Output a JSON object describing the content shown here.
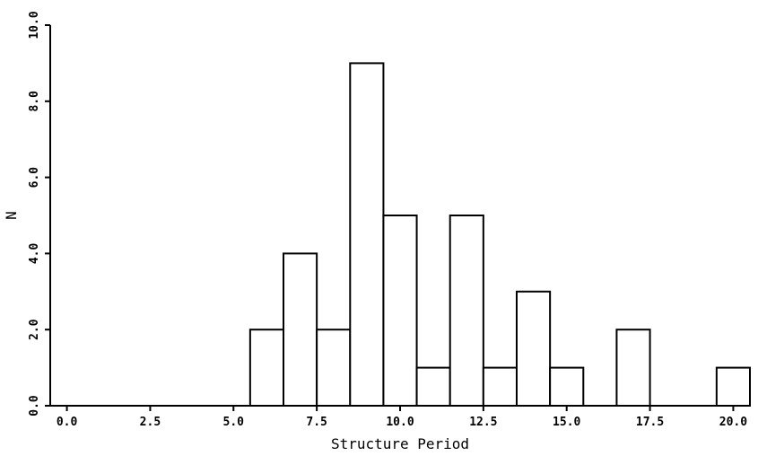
{
  "chart_data": {
    "type": "bar",
    "xlabel": "Structure Period",
    "ylabel": "N",
    "xlim": [
      -0.5,
      20.5
    ],
    "ylim": [
      0,
      10
    ],
    "xticks": [
      0.0,
      2.5,
      5.0,
      7.5,
      10.0,
      12.5,
      15.0,
      17.5,
      20.0
    ],
    "xtick_labels": [
      "0.0",
      "2.5",
      "5.0",
      "7.5",
      "10.0",
      "12.5",
      "15.0",
      "17.5",
      "20.0"
    ],
    "yticks": [
      0,
      2,
      4,
      6,
      8,
      10
    ],
    "ytick_labels": [
      "0.0",
      "2.0",
      "4.0",
      "6.0",
      "8.0",
      "10.0"
    ],
    "bin_width": 1,
    "categories": [
      6,
      7,
      8,
      9,
      10,
      11,
      12,
      13,
      14,
      15,
      16,
      17,
      18,
      19,
      20
    ],
    "values": [
      2,
      4,
      2,
      9,
      5,
      1,
      5,
      1,
      3,
      1,
      0,
      2,
      0,
      0,
      1
    ],
    "grid": false,
    "legend": "none"
  }
}
